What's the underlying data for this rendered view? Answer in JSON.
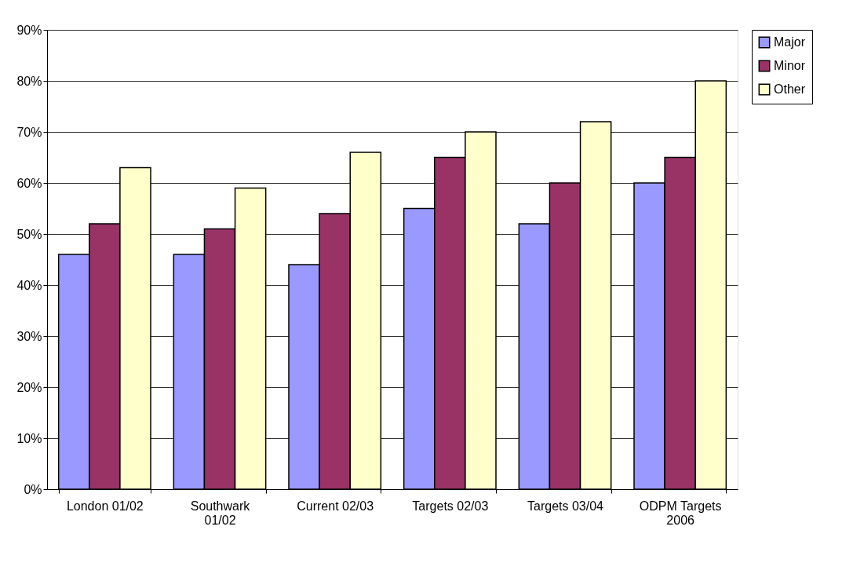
{
  "chart_data": {
    "type": "bar",
    "categories": [
      "London 01/02",
      "Southwark 01/02",
      "Current 02/03",
      "Targets 02/03",
      "Targets 03/04",
      "ODPM Targets 2006"
    ],
    "series": [
      {
        "name": "Major",
        "color": "#9999ff",
        "values": [
          46,
          46,
          44,
          55,
          52,
          60
        ]
      },
      {
        "name": "Minor",
        "color": "#993366",
        "values": [
          52,
          51,
          54,
          65,
          60,
          65
        ]
      },
      {
        "name": "Other",
        "color": "#ffffcc",
        "values": [
          63,
          59,
          66,
          70,
          72,
          80
        ]
      }
    ],
    "ylim": [
      0,
      90
    ],
    "yticks": [
      {
        "value": 0,
        "label": "0%"
      },
      {
        "value": 10,
        "label": "10%"
      },
      {
        "value": 20,
        "label": "20%"
      },
      {
        "value": 30,
        "label": "30%"
      },
      {
        "value": 40,
        "label": "40%"
      },
      {
        "value": 50,
        "label": "50%"
      },
      {
        "value": 60,
        "label": "60%"
      },
      {
        "value": 70,
        "label": "70%"
      },
      {
        "value": 80,
        "label": "80%"
      },
      {
        "value": 90,
        "label": "90%"
      }
    ],
    "grid": "y",
    "legend": "right"
  }
}
